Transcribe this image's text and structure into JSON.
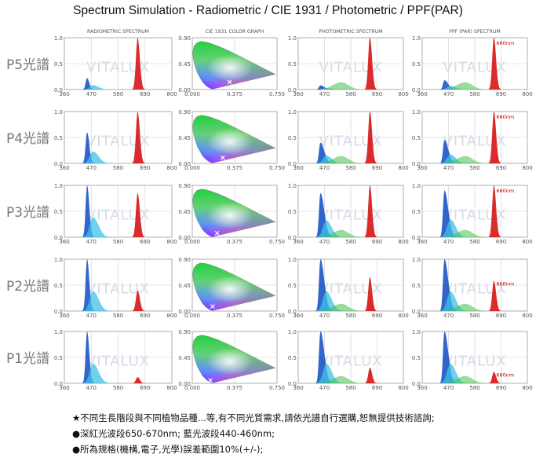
{
  "title": "Spectrum Simulation - Radiometric / CIE 1931 / Photometric / PPF(PAR)",
  "column_headers": [
    "RADIOMETRIC SPECTRUM",
    "CIE 1931 COLOR GRAPH",
    "PHOTOMETRIC SPECTRUM",
    "PPF (PAR) SPECTRUM"
  ],
  "row_labels": [
    "P5光譜",
    "P4光譜",
    "P3光譜",
    "P2光譜",
    "P1光譜"
  ],
  "watermark": "VITALUX",
  "peak_annotation": "660nm",
  "notes": [
    "★不同生長階段與不同植物品種...等,有不同光質需求,請依光譜自行選購,恕無提供技術諮詢;",
    "●深紅光波段650-670nm; 藍光波段440-460nm;",
    "●所為規格(機構,電子,光學)誤差範圍10%(+/-);"
  ],
  "chart_data": {
    "type": "line",
    "spectrum_axes": {
      "xticks": [
        "360",
        "470",
        "580",
        "690",
        "800"
      ],
      "xlim": [
        360,
        800
      ],
      "yticks": [
        "0.0",
        "0.5",
        "1.0"
      ],
      "ylim": [
        0,
        1
      ]
    },
    "cie_axes": {
      "xticks": [
        "0.000",
        "0.375",
        "0.750"
      ],
      "xlim": [
        0,
        0.75
      ],
      "yticks": [
        "0.00",
        "0.45",
        "0.90"
      ],
      "ylim": [
        0,
        0.9
      ]
    },
    "panels": [
      {
        "row": "P5光譜",
        "radiometric": {
          "blue_peak_nm": 450,
          "blue": 0.22,
          "red_peak_nm": 660,
          "red": 1.0
        },
        "cie_point": [
          0.33,
          0.13
        ],
        "photometric": {
          "blue": 0.08,
          "red": 1.0
        },
        "ppf_par": {
          "blue": 0.18,
          "red": 1.0
        }
      },
      {
        "row": "P4光譜",
        "radiometric": {
          "blue_peak_nm": 450,
          "blue": 0.6,
          "red_peak_nm": 660,
          "red": 1.0
        },
        "cie_point": [
          0.27,
          0.1
        ],
        "photometric": {
          "blue": 0.4,
          "red": 1.0
        },
        "ppf_par": {
          "blue": 0.45,
          "red": 1.0
        }
      },
      {
        "row": "P3光譜",
        "radiometric": {
          "blue_peak_nm": 450,
          "blue": 1.0,
          "red_peak_nm": 660,
          "red": 0.85
        },
        "cie_point": [
          0.22,
          0.07
        ],
        "photometric": {
          "blue": 0.85,
          "red": 1.0
        },
        "ppf_par": {
          "blue": 0.9,
          "red": 1.0
        }
      },
      {
        "row": "P2光譜",
        "radiometric": {
          "blue_peak_nm": 450,
          "blue": 1.0,
          "red_peak_nm": 660,
          "red": 0.4
        },
        "cie_point": [
          0.18,
          0.08
        ],
        "photometric": {
          "blue": 1.0,
          "red": 0.65
        },
        "ppf_par": {
          "blue": 1.0,
          "red": 0.58
        }
      },
      {
        "row": "P1光譜",
        "radiometric": {
          "blue_peak_nm": 450,
          "blue": 1.0,
          "red_peak_nm": 660,
          "red": 0.12
        },
        "cie_point": [
          0.16,
          0.05
        ],
        "photometric": {
          "blue": 1.0,
          "red": 0.3
        },
        "ppf_par": {
          "blue": 1.0,
          "red": 0.22
        }
      }
    ]
  },
  "colors": {
    "red": "#d71a1a",
    "blue": "#1d55c8",
    "cyan": "#3fc1e4",
    "grid": "#cfcfcf",
    "row_label": "#777777"
  }
}
